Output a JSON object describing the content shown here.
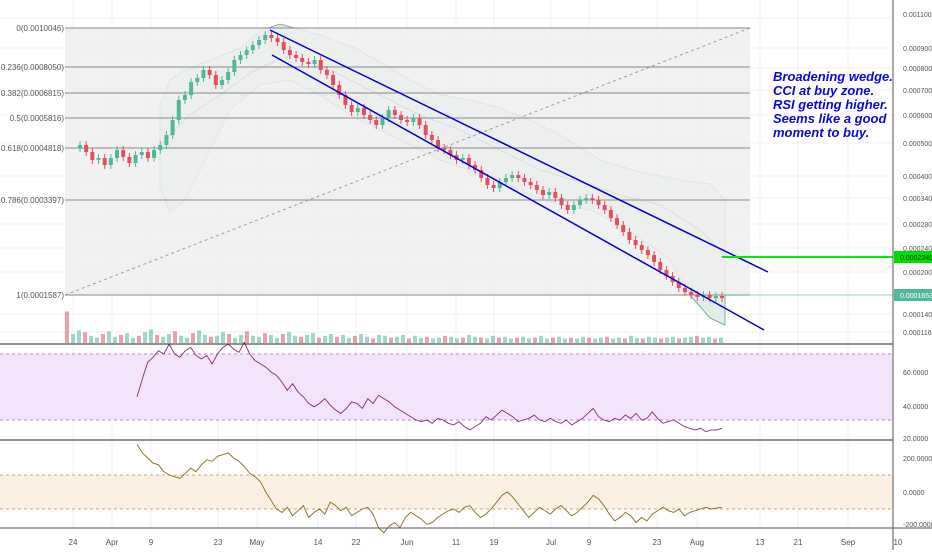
{
  "chart_data": {
    "type": "candlestick",
    "annotation": [
      "Broadening wedge.",
      "CCI at buy zone.",
      "RSI getting higher.",
      "Seems like a good",
      "moment to buy."
    ],
    "price_axis": {
      "ticks": [
        "0.0011000",
        "0.0009000",
        "0.0008000",
        "0.0007000",
        "0.0006000",
        "0.0005000",
        "0.0004000",
        "0.0003400",
        "0.0002800",
        "0.0002400",
        "0.0002000",
        "0.0001400",
        "0.0001160"
      ],
      "current_price": "0.0001653",
      "target_price": "0.0002240"
    },
    "fib_levels": [
      {
        "label": "0(0.0010046)"
      },
      {
        "label": "0.236(0.0008050)"
      },
      {
        "label": "0.382(0.0006815)"
      },
      {
        "label": "0.5(0.0005816)"
      },
      {
        "label": "0.618(0.0004818)"
      },
      {
        "label": "0.786(0.0003397)"
      },
      {
        "label": "1(0.0001587)"
      }
    ],
    "x_axis": {
      "ticks": [
        "24",
        "Apr",
        "9",
        "23",
        "May",
        "14",
        "22",
        "Jun",
        "11",
        "19",
        "Jul",
        "9",
        "23",
        "Aug",
        "13",
        "21",
        "Sep",
        "10"
      ]
    },
    "rsi": {
      "ticks": [
        "60.0000",
        "40.0000",
        "20.0000"
      ],
      "upper": 70,
      "lower": 30,
      "values": [
        44,
        55,
        65,
        68,
        72,
        70,
        76,
        70,
        68,
        72,
        74,
        69,
        67,
        69,
        64,
        70,
        74,
        76,
        73,
        71,
        77,
        70,
        66,
        64,
        62,
        59,
        57,
        53,
        48,
        52,
        47,
        44,
        40,
        38,
        40,
        43,
        39,
        36,
        34,
        37,
        41,
        40,
        37,
        43,
        40,
        45,
        43,
        41,
        38,
        36,
        34,
        32,
        30,
        29,
        30,
        28,
        31,
        30,
        28,
        27,
        29,
        26,
        24,
        26,
        28,
        32,
        30,
        33,
        36,
        34,
        32,
        29,
        30,
        31,
        33,
        30,
        29,
        31,
        29,
        28,
        30,
        27,
        29,
        31,
        34,
        37,
        32,
        30,
        29,
        31,
        30,
        33,
        31,
        34,
        30,
        31,
        35,
        31,
        28,
        29,
        30,
        28,
        26,
        25,
        24,
        25,
        23,
        24,
        24,
        25
      ]
    },
    "cci": {
      "ticks": [
        "200.0000",
        "0.0000",
        "-200.0000"
      ],
      "upper": 100,
      "lower": -100,
      "values": [
        280,
        230,
        200,
        170,
        160,
        120,
        100,
        90,
        80,
        110,
        140,
        120,
        160,
        190,
        180,
        210,
        220,
        230,
        200,
        180,
        150,
        110,
        90,
        60,
        0,
        -50,
        -100,
        -120,
        -90,
        -140,
        -110,
        -80,
        -150,
        -120,
        -100,
        -130,
        -60,
        -80,
        -110,
        -90,
        -140,
        -120,
        -100,
        -90,
        -130,
        -210,
        -240,
        -200,
        -180,
        -210,
        -150,
        -120,
        -140,
        -160,
        -190,
        -180,
        -150,
        -130,
        -110,
        -100,
        -120,
        -90,
        -80,
        -120,
        -150,
        -130,
        -100,
        -60,
        -20,
        0,
        -30,
        -70,
        -110,
        -150,
        -120,
        -90,
        -110,
        -130,
        -100,
        -80,
        -110,
        -140,
        -120,
        -90,
        -60,
        -20,
        -40,
        -80,
        -130,
        -170,
        -150,
        -120,
        -140,
        -180,
        -150,
        -170,
        -130,
        -110,
        -90,
        -110,
        -120,
        -100,
        -140,
        -120,
        -110,
        -100,
        -90,
        -100,
        -95,
        -90
      ]
    },
    "volume": [
      0.35,
      0.1,
      0.14,
      0.12,
      0.08,
      0.06,
      0.1,
      0.13,
      0.07,
      0.09,
      0.11,
      0.06,
      0.08,
      0.12,
      0.15,
      0.09,
      0.07,
      0.1,
      0.13,
      0.08,
      0.06,
      0.11,
      0.14,
      0.09,
      0.07,
      0.08,
      0.12,
      0.1,
      0.06,
      0.09,
      0.13,
      0.08,
      0.07,
      0.11,
      0.09,
      0.06,
      0.1,
      0.12,
      0.08,
      0.07,
      0.09,
      0.11,
      0.06,
      0.08,
      0.1,
      0.07,
      0.09,
      0.06,
      0.08,
      0.1,
      0.07,
      0.05,
      0.09,
      0.08,
      0.06,
      0.07,
      0.09,
      0.05,
      0.08,
      0.06,
      0.07,
      0.05,
      0.06,
      0.08,
      0.07,
      0.05,
      0.06,
      0.09,
      0.07,
      0.06,
      0.05,
      0.08,
      0.06,
      0.07,
      0.05,
      0.06,
      0.07,
      0.05,
      0.06,
      0.08,
      0.05,
      0.06,
      0.07,
      0.05,
      0.06,
      0.05,
      0.07,
      0.06,
      0.05,
      0.06,
      0.07,
      0.05,
      0.06,
      0.05,
      0.08,
      0.06,
      0.05,
      0.07,
      0.06,
      0.05,
      0.06,
      0.07,
      0.05,
      0.06,
      0.07,
      0.08,
      0.06,
      0.07,
      0.05,
      0.06
    ],
    "colors": {
      "up": "#4fb89a",
      "down": "#e0505e",
      "channel": "#0000cc",
      "target_line": "#00ee00",
      "rsi_band": "#f3e3fb",
      "rsi_line": "#8b2c6e",
      "cci_band": "#fbf0e2",
      "cci_line": "#8a6a1e",
      "bollinger_fill": "#d9e8e0",
      "bollinger_line": "#2e7d5c"
    }
  }
}
